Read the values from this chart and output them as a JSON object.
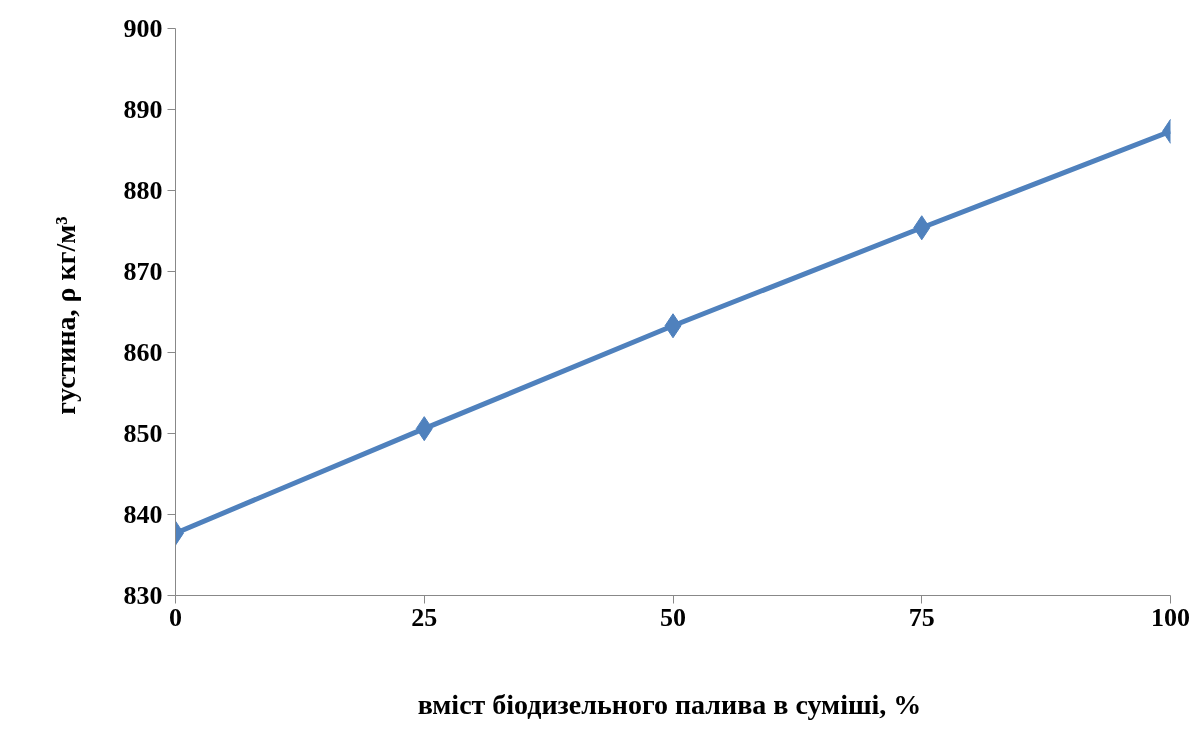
{
  "chart_data": {
    "type": "line",
    "xlabel": "вміст біодизельного  палива в суміші, %",
    "ylabel": "густина,  ρ кг/м³",
    "x": [
      0,
      25,
      50,
      75,
      100
    ],
    "series": [
      {
        "color": "#4f81bd",
        "values": [
          837.7,
          850.6,
          863.3,
          875.4,
          887.3
        ]
      }
    ],
    "xlim": [
      0,
      100
    ],
    "xticks": [
      0,
      25,
      50,
      75,
      100
    ],
    "ylim": [
      830,
      900
    ],
    "yticks": [
      830,
      840,
      850,
      860,
      870,
      880,
      890,
      900
    ],
    "grid": false,
    "marker": "diamond",
    "line_style": "solid"
  }
}
